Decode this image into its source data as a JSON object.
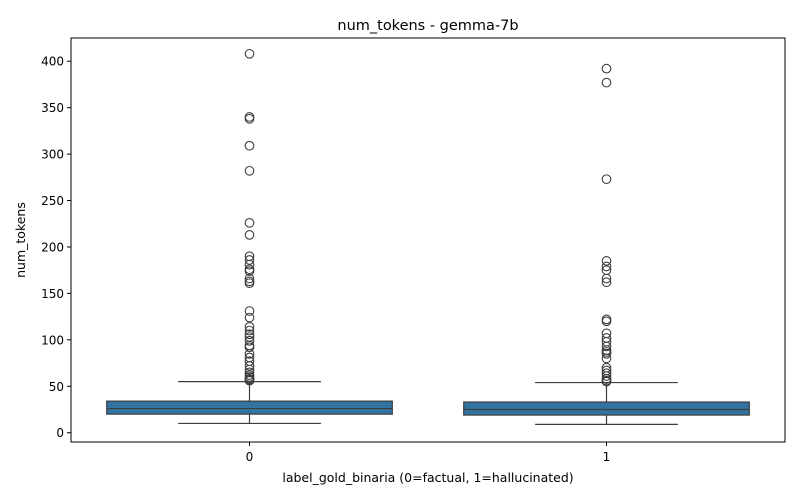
{
  "chart_data": {
    "type": "box",
    "title": "num_tokens - gemma-7b",
    "xlabel": "label_gold_binaria (0=factual, 1=hallucinated)",
    "ylabel": "num_tokens",
    "ylim": [
      -10,
      425
    ],
    "yticks": [
      0,
      50,
      100,
      150,
      200,
      250,
      300,
      350,
      400
    ],
    "grid": false,
    "legend": "none",
    "categories": [
      "0",
      "1"
    ],
    "box_color": "#3274a1",
    "boxes": [
      {
        "category": "0",
        "whisker_low": 10,
        "q1": 20,
        "median": 26,
        "q3": 34,
        "whisker_high": 55,
        "outliers": [
          408,
          340,
          338,
          309,
          282,
          226,
          213,
          190,
          186,
          181,
          176,
          174,
          166,
          163,
          161,
          131,
          124,
          114,
          110,
          106,
          103,
          99,
          94,
          92,
          85,
          81,
          77,
          72,
          68,
          65,
          62,
          60,
          58,
          57,
          56
        ]
      },
      {
        "category": "1",
        "whisker_low": 9,
        "q1": 19,
        "median": 25,
        "q3": 33,
        "whisker_high": 54,
        "outliers": [
          392,
          377,
          273,
          185,
          179,
          175,
          166,
          162,
          122,
          120,
          107,
          102,
          98,
          93,
          89,
          87,
          85,
          80,
          70,
          67,
          64,
          61,
          58,
          56,
          55
        ]
      }
    ]
  }
}
